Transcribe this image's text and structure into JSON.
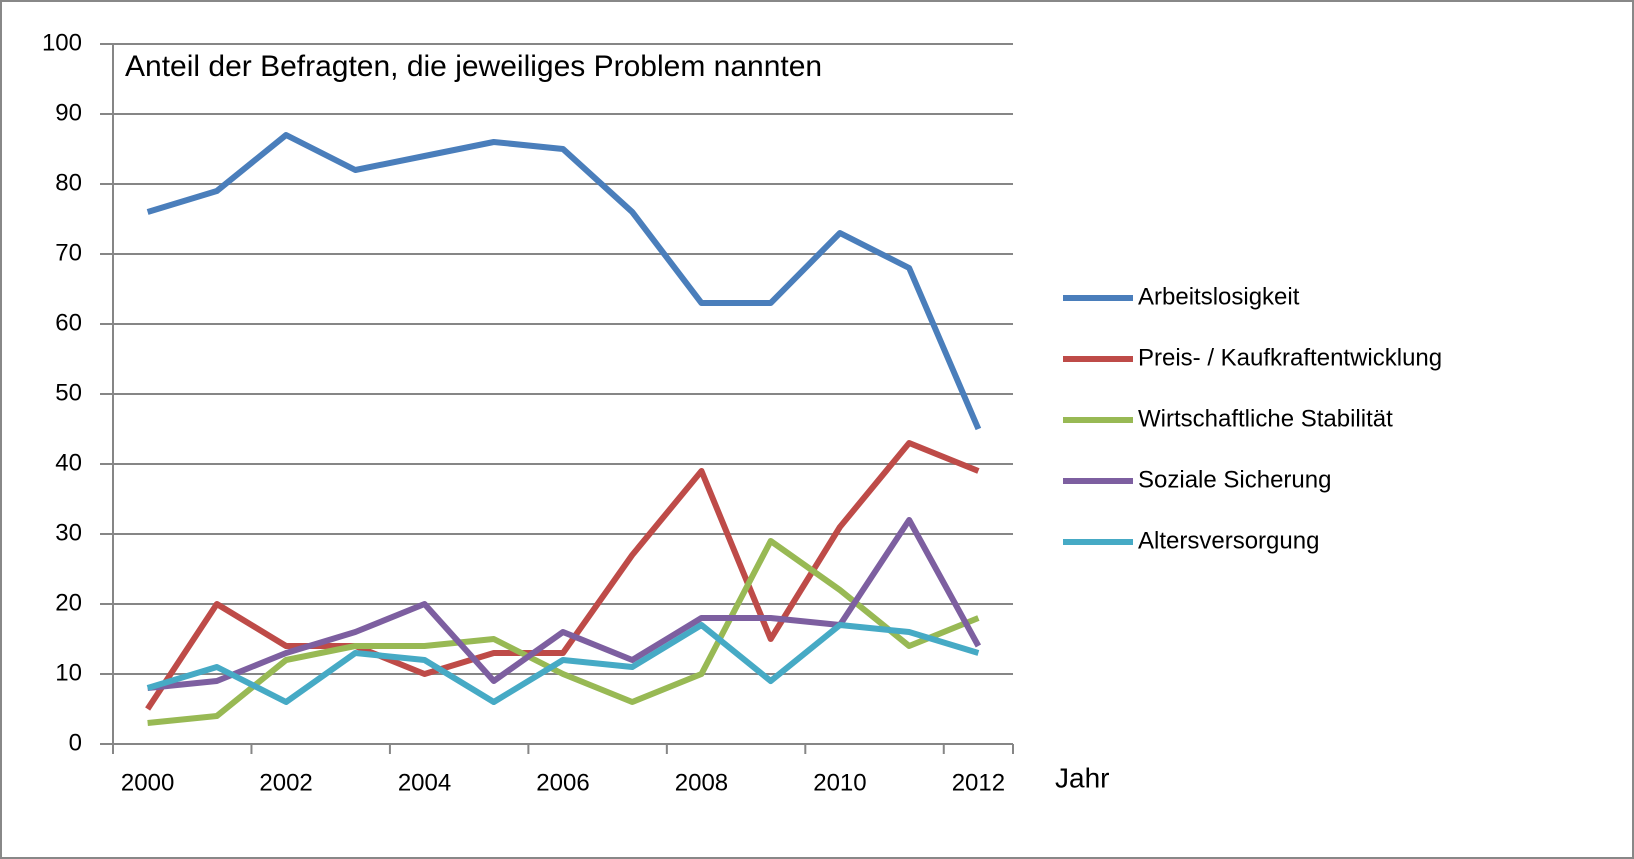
{
  "chart_data": {
    "type": "line",
    "title": "Anteil der Befragten, die jeweiliges Problem nannten",
    "x_label": "Jahr",
    "categories": [
      "2000",
      null,
      "2002",
      null,
      "2004",
      null,
      "2006",
      null,
      "2008",
      null,
      "2010",
      null,
      "2012"
    ],
    "series": [
      {
        "name": "Arbeitslosigkeit",
        "color": "#4a7ebb",
        "values": [
          76,
          79,
          87,
          82,
          84,
          86,
          85,
          76,
          63,
          63,
          73,
          68,
          45
        ]
      },
      {
        "name": "Preis- / Kaufkraftentwicklung",
        "color": "#be4b48",
        "values": [
          5,
          20,
          14,
          14,
          10,
          13,
          13,
          27,
          39,
          15,
          31,
          43,
          39
        ]
      },
      {
        "name": "Wirtschaftliche Stabilität",
        "color": "#98b954",
        "values": [
          3,
          4,
          12,
          14,
          14,
          15,
          10,
          6,
          10,
          29,
          22,
          14,
          18
        ]
      },
      {
        "name": "Soziale Sicherung",
        "color": "#7d5fa0",
        "values": [
          8,
          9,
          13,
          16,
          20,
          9,
          16,
          12,
          18,
          18,
          17,
          32,
          14
        ]
      },
      {
        "name": "Altersversorgung",
        "color": "#46aac5",
        "values": [
          8,
          11,
          6,
          13,
          12,
          6,
          12,
          11,
          17,
          9,
          17,
          16,
          13
        ]
      }
    ],
    "ylim": [
      0,
      100
    ],
    "yticks": [
      0,
      10,
      20,
      30,
      40,
      50,
      60,
      70,
      80,
      90,
      100
    ],
    "grid": true,
    "legend": "right"
  }
}
